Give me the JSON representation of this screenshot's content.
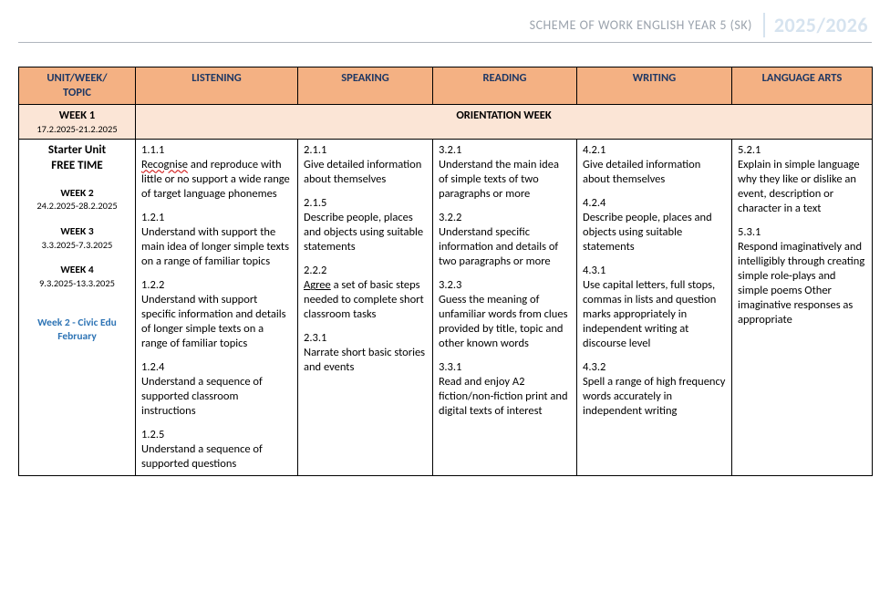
{
  "header": {
    "title": "SCHEME OF WORK ENGLISH YEAR  5 (SK)",
    "year": "2025/2026"
  },
  "columns": {
    "unit": "UNIT/WEEK/\nTOPIC",
    "listening": "LISTENING",
    "speaking": "SPEAKING",
    "reading": "READING",
    "writing": "WRITING",
    "language_arts": "LANGUAGE ARTS"
  },
  "week1": {
    "label": "WEEK 1",
    "dates": "17.2.2025-21.2.2025",
    "banner": "ORIENTATION WEEK"
  },
  "unit": {
    "title1": "Starter Unit",
    "title2": "FREE TIME",
    "weeks": [
      {
        "label": "WEEK 2",
        "dates": "24.2.2025-28.2.2025"
      },
      {
        "label": "WEEK 3",
        "dates": "3.3.2025-7.3.2025"
      },
      {
        "label": "WEEK 4",
        "dates": "9.3.2025-13.3.2025"
      }
    ],
    "civic1": "Week 2 - Civic Edu",
    "civic2": "February"
  },
  "listening": [
    {
      "code": "1.1.1",
      "pre": "",
      "squig": "Recognise",
      "post": " and reproduce with little or no support a wide range of target language phonemes"
    },
    {
      "code": "1.2.1",
      "text": "Understand with support the main idea of longer simple texts on a range of familiar topics"
    },
    {
      "code": "1.2.2",
      "text": "Understand with support specific information and details of longer simple texts on a range of familiar topics"
    },
    {
      "code": "1.2.4",
      "text": "Understand a sequence of supported classroom instructions"
    },
    {
      "code": "1.2.5",
      "text": "Understand a sequence of supported questions"
    }
  ],
  "speaking": [
    {
      "code": "2.1.1",
      "text": "Give detailed information about themselves"
    },
    {
      "code": "2.1.5",
      "text": "Describe people, places and objects using suitable statements"
    },
    {
      "code": "2.2.2",
      "agree": "Agree",
      "post": " a set of basic steps needed to complete short classroom tasks"
    },
    {
      "code": "2.3.1",
      "text": "Narrate short basic stories and events"
    }
  ],
  "reading": [
    {
      "code": "3.2.1",
      "text": "Understand the main idea of simple texts of two paragraphs or more"
    },
    {
      "code": "3.2.2",
      "text": "Understand specific information and details of two paragraphs or more"
    },
    {
      "code": "3.2.3",
      "text": "Guess the meaning of unfamiliar words from clues provided by title, topic and other known words"
    },
    {
      "code": "3.3.1",
      "text": "Read and enjoy A2 fiction/non-fiction print and digital texts of interest"
    }
  ],
  "writing": [
    {
      "code": "4.2.1",
      "text": "Give detailed information about themselves"
    },
    {
      "code": "4.2.4",
      "text": "Describe people, places and objects using suitable statements"
    },
    {
      "code": "4.3.1",
      "text": "Use capital letters, full stops, commas in lists and question marks appropriately in independent writing at discourse level"
    },
    {
      "code": "4.3.2",
      "text": "Spell a range of high frequency words accurately in independent writing"
    }
  ],
  "language_arts": [
    {
      "code": "5.2.1",
      "text": "Explain in simple language why they like or dislike an event, description or character in a text"
    },
    {
      "code": "5.3.1",
      "text": "Respond imaginatively and intelligibly through creating simple role-plays and simple poems Other imaginative responses as appropriate"
    }
  ]
}
